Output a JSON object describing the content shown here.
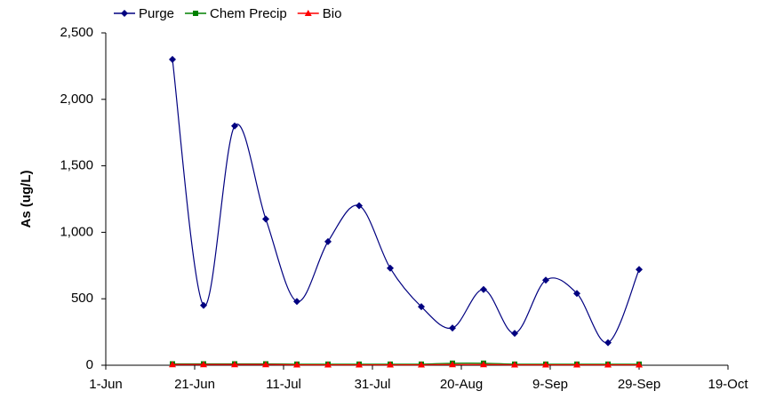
{
  "chart_data": {
    "type": "line",
    "y_label": "As (ug/L)",
    "x": [
      "16-Jun",
      "23-Jun",
      "30-Jun",
      "7-Jul",
      "14-Jul",
      "21-Jul",
      "28-Jul",
      "4-Aug",
      "11-Aug",
      "18-Aug",
      "25-Aug",
      "1-Sep",
      "8-Sep",
      "15-Sep",
      "22-Sep",
      "29-Sep"
    ],
    "series": [
      {
        "name": "Purge",
        "color": "#000080",
        "marker": "diamond",
        "values": [
          2300,
          450,
          1800,
          1100,
          480,
          930,
          1200,
          730,
          440,
          280,
          570,
          240,
          640,
          540,
          170,
          720
        ]
      },
      {
        "name": "Chem Precip",
        "color": "#008000",
        "marker": "square",
        "values": [
          10,
          10,
          10,
          10,
          8,
          8,
          8,
          8,
          8,
          15,
          15,
          8,
          8,
          8,
          8,
          8
        ]
      },
      {
        "name": "Bio",
        "color": "#ff0000",
        "marker": "triangle",
        "values": [
          5,
          5,
          5,
          5,
          3,
          3,
          3,
          3,
          3,
          5,
          5,
          3,
          3,
          3,
          3,
          3
        ]
      }
    ],
    "xlim": [
      "1-Jun",
      "19-Oct"
    ],
    "xticks": [
      "1-Jun",
      "21-Jun",
      "11-Jul",
      "31-Jul",
      "20-Aug",
      "9-Sep",
      "29-Sep",
      "19-Oct"
    ],
    "ylim": [
      0,
      2500
    ],
    "yticks": [
      0,
      500,
      {
        "value": 1000,
        "label": "1,000"
      },
      {
        "value": 1500,
        "label": "1,500"
      },
      {
        "value": 2000,
        "label": "2,000"
      },
      {
        "value": 2500,
        "label": "2,500"
      }
    ],
    "smooth": true,
    "legend": "top"
  }
}
